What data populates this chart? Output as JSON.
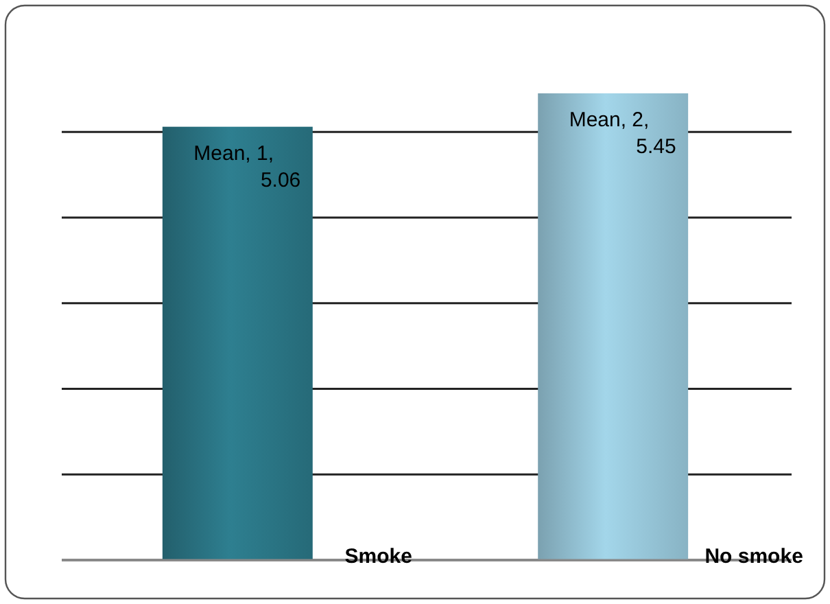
{
  "chart_data": {
    "type": "bar",
    "categories": [
      "Smoke",
      "No smoke"
    ],
    "values": [
      5.06,
      5.45
    ],
    "colors": [
      "#2e7f90",
      "#a3d6ea"
    ],
    "value_labels": [
      "Mean, 1, 5.06",
      "Mean, 2, 5.45"
    ],
    "grid": "y",
    "tick_labels": "x"
  }
}
